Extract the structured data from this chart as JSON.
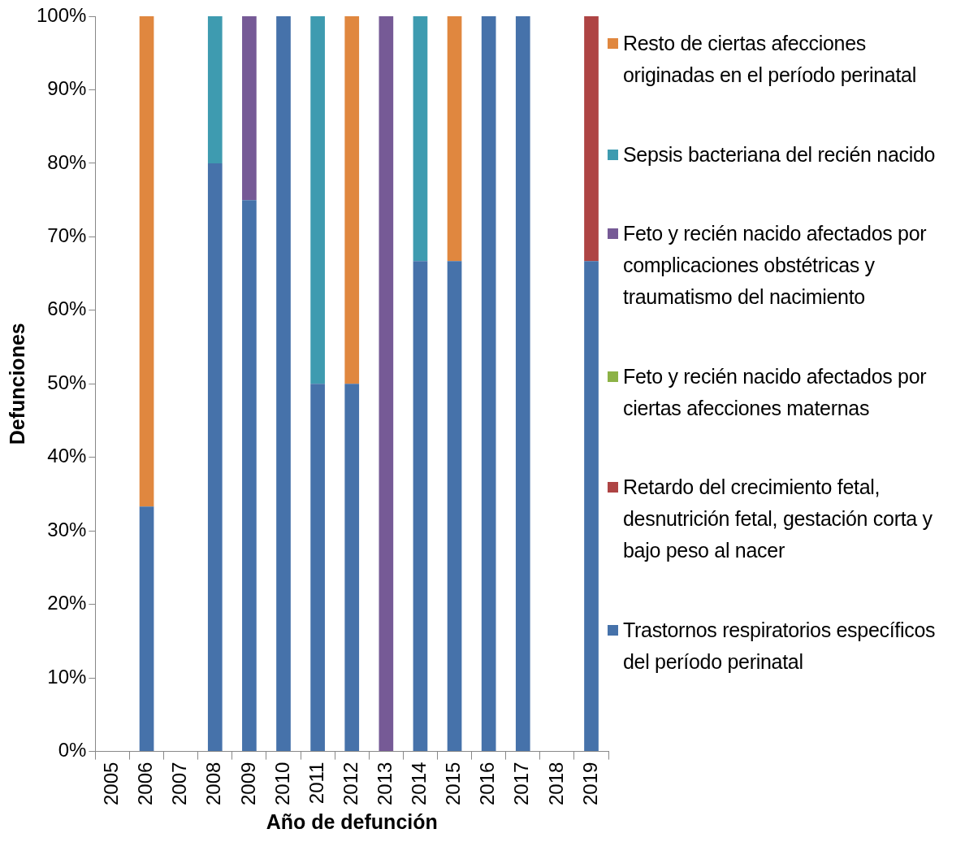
{
  "chart_data": {
    "type": "bar",
    "stacked": true,
    "xlabel": "Año de defunción",
    "ylabel": "Defunciones",
    "categories": [
      "2005",
      "2006",
      "2007",
      "2008",
      "2009",
      "2010",
      "2011",
      "2012",
      "2013",
      "2014",
      "2015",
      "2016",
      "2017",
      "2018",
      "2019"
    ],
    "ylim": [
      0,
      100
    ],
    "yticks": [
      {
        "value": 0,
        "label": "0%"
      },
      {
        "value": 10,
        "label": "10%"
      },
      {
        "value": 20,
        "label": "20%"
      },
      {
        "value": 30,
        "label": "30%"
      },
      {
        "value": 40,
        "label": "40%"
      },
      {
        "value": 50,
        "label": "50%"
      },
      {
        "value": 60,
        "label": "60%"
      },
      {
        "value": 70,
        "label": "70%"
      },
      {
        "value": 80,
        "label": "80%"
      },
      {
        "value": 90,
        "label": "90%"
      },
      {
        "value": 100,
        "label": "100%"
      }
    ],
    "legend": "right",
    "grid": false,
    "series": [
      {
        "name": "Trastornos respiratorios específicos del período perinatal",
        "color": "#4672aa",
        "values": [
          null,
          33.3,
          null,
          80,
          75,
          100,
          50,
          50,
          null,
          66.7,
          66.7,
          100,
          100,
          null,
          66.7
        ]
      },
      {
        "name": "Retardo del crecimiento fetal, desnutrición fetal, gestación corta y bajo peso al nacer",
        "color": "#ae4444",
        "values": [
          null,
          null,
          null,
          null,
          null,
          null,
          null,
          null,
          null,
          null,
          null,
          null,
          null,
          null,
          33.3
        ]
      },
      {
        "name": "Feto y recién nacido afectados por ciertas afecciones maternas",
        "color": "#8cb246",
        "values": [
          null,
          null,
          null,
          null,
          null,
          null,
          null,
          null,
          null,
          null,
          null,
          null,
          null,
          null,
          null
        ]
      },
      {
        "name": "Feto y recién nacido afectados por complicaciones obstétricas y traumatismo del nacimiento",
        "color": "#765a96",
        "values": [
          null,
          null,
          null,
          null,
          25,
          null,
          null,
          null,
          100,
          null,
          null,
          null,
          null,
          null,
          null
        ]
      },
      {
        "name": "Sepsis bacteriana del recién nacido",
        "color": "#3e9bb0",
        "values": [
          null,
          null,
          null,
          20,
          null,
          null,
          50,
          null,
          null,
          33.3,
          null,
          null,
          null,
          null,
          null
        ]
      },
      {
        "name": "Resto de ciertas afecciones originadas en el período perinatal",
        "color": "#e0873f",
        "values": [
          null,
          66.7,
          null,
          null,
          null,
          null,
          null,
          50,
          null,
          null,
          33.3,
          null,
          null,
          null,
          null
        ]
      }
    ]
  }
}
